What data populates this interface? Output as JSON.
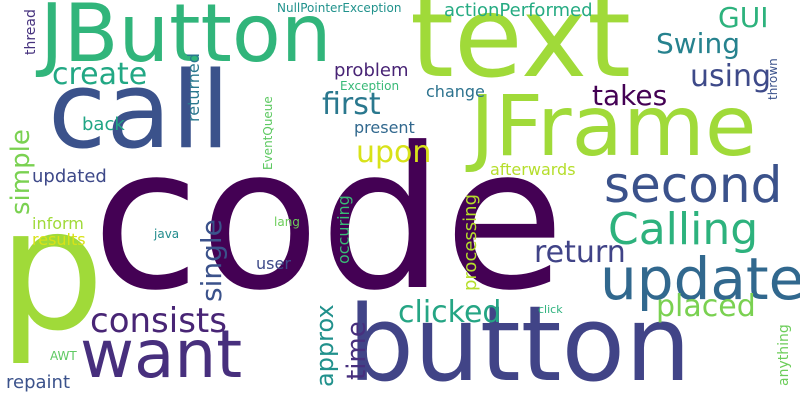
{
  "words": [
    {
      "text": "code",
      "color": "#440154"
    },
    {
      "text": "p",
      "color": "#a0da39"
    },
    {
      "text": "button",
      "color": "#414487"
    },
    {
      "text": "text",
      "color": "#a0da39"
    },
    {
      "text": "call",
      "color": "#3b528b"
    },
    {
      "text": "JButton",
      "color": "#31b57b"
    },
    {
      "text": "JFrame",
      "color": "#a0da39"
    },
    {
      "text": "want",
      "color": "#472f7d"
    },
    {
      "text": "update",
      "color": "#31688e"
    },
    {
      "text": "second",
      "color": "#3b528b"
    },
    {
      "text": "Calling",
      "color": "#2db27d"
    },
    {
      "text": "consists",
      "color": "#482575"
    },
    {
      "text": "clicked",
      "color": "#25a584"
    },
    {
      "text": "return",
      "color": "#404387"
    },
    {
      "text": "placed",
      "color": "#7ad151"
    },
    {
      "text": "using",
      "color": "#3e4a89"
    },
    {
      "text": "create",
      "color": "#22a884"
    },
    {
      "text": "first",
      "color": "#2a788e"
    },
    {
      "text": "upon",
      "color": "#d8e219"
    },
    {
      "text": "takes",
      "color": "#440154"
    },
    {
      "text": "Swing",
      "color": "#26828e"
    },
    {
      "text": "GUI",
      "color": "#2db27d"
    },
    {
      "text": "simple",
      "color": "#7ad151"
    },
    {
      "text": "single",
      "color": "#3b528b"
    },
    {
      "text": "approx",
      "color": "#21918c"
    },
    {
      "text": "time",
      "color": "#472f7d"
    },
    {
      "text": "processing",
      "color": "#b5de2b"
    },
    {
      "text": "occuring",
      "color": "#3aba76"
    },
    {
      "text": "returned",
      "color": "#2a788e"
    },
    {
      "text": "actionPerformed",
      "color": "#25ab82"
    },
    {
      "text": "problem",
      "color": "#482475"
    },
    {
      "text": "change",
      "color": "#2c728e"
    },
    {
      "text": "back",
      "color": "#21a585"
    },
    {
      "text": "present",
      "color": "#31688e"
    },
    {
      "text": "updated",
      "color": "#3e4989"
    },
    {
      "text": "afterwards",
      "color": "#b5de2b"
    },
    {
      "text": "inform",
      "color": "#a0da39"
    },
    {
      "text": "results",
      "color": "#d8e219"
    },
    {
      "text": "user",
      "color": "#3e4a89"
    },
    {
      "text": "repaint",
      "color": "#3b528b"
    },
    {
      "text": "anything",
      "color": "#6ccd5a"
    },
    {
      "text": "thread",
      "color": "#46327e"
    },
    {
      "text": "NullPointerException",
      "color": "#20928c"
    },
    {
      "text": "Exception",
      "color": "#38b977"
    },
    {
      "text": "EventQueue",
      "color": "#5ec962"
    },
    {
      "text": "thrown",
      "color": "#3b528b"
    },
    {
      "text": "java",
      "color": "#228c8d"
    },
    {
      "text": "lang",
      "color": "#6ccd5a"
    },
    {
      "text": "AWT",
      "color": "#5ec962"
    },
    {
      "text": "click",
      "color": "#2db27d"
    }
  ]
}
